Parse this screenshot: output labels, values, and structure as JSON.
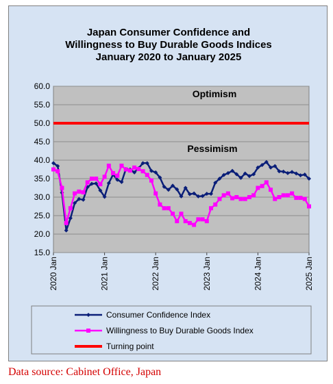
{
  "chart_data": {
    "type": "line",
    "title_lines": [
      "Japan Consumer Confidence and",
      "Willingness to Buy Durable Goods Indices",
      "January 2020 to January 2025"
    ],
    "ylim": [
      15,
      60
    ],
    "yticks": [
      "60.0",
      "55.0",
      "50.0",
      "45.0",
      "40.0",
      "35.0",
      "30.0",
      "25.0",
      "20.0",
      "15.0"
    ],
    "x_range": [
      "2020-01",
      "2025-01"
    ],
    "xticks": [
      "2020 Jan",
      "2021 Jan",
      "2022 Jan",
      "2023 Jan",
      "2024 Jan",
      "2025 Jan"
    ],
    "grid": true,
    "zone_labels": {
      "optimism": "Optimism",
      "pessimism": "Pessimism"
    },
    "legend_position": "bottom",
    "series": [
      {
        "name": "Consumer Confidence Index",
        "color": "#0a1e78",
        "marker": "diamond",
        "x": [
          "2020-01",
          "2020-02",
          "2020-03",
          "2020-04",
          "2020-05",
          "2020-06",
          "2020-07",
          "2020-08",
          "2020-09",
          "2020-10",
          "2020-11",
          "2020-12",
          "2021-01",
          "2021-02",
          "2021-03",
          "2021-04",
          "2021-05",
          "2021-06",
          "2021-07",
          "2021-08",
          "2021-09",
          "2021-10",
          "2021-11",
          "2021-12",
          "2022-01",
          "2022-02",
          "2022-03",
          "2022-04",
          "2022-05",
          "2022-06",
          "2022-07",
          "2022-08",
          "2022-09",
          "2022-10",
          "2022-11",
          "2022-12",
          "2023-01",
          "2023-02",
          "2023-03",
          "2023-04",
          "2023-05",
          "2023-06",
          "2023-07",
          "2023-08",
          "2023-09",
          "2023-10",
          "2023-11",
          "2023-12",
          "2024-01",
          "2024-02",
          "2024-03",
          "2024-04",
          "2024-05",
          "2024-06",
          "2024-07",
          "2024-08",
          "2024-09",
          "2024-10",
          "2024-11",
          "2024-12",
          "2025-01"
        ],
        "values": [
          39.2,
          38.4,
          31.2,
          21.0,
          24.3,
          28.4,
          29.5,
          29.3,
          32.7,
          33.6,
          33.7,
          31.8,
          30.1,
          33.8,
          36.1,
          34.7,
          34.1,
          37.6,
          37.5,
          36.7,
          37.8,
          39.2,
          39.2,
          37.1,
          36.7,
          35.3,
          32.8,
          32.0,
          33.1,
          32.1,
          30.2,
          32.5,
          30.8,
          31.0,
          30.2,
          30.3,
          30.9,
          30.9,
          33.9,
          35.0,
          36.0,
          36.5,
          37.1,
          36.2,
          35.2,
          36.4,
          35.7,
          36.2,
          38.0,
          38.7,
          39.5,
          38.0,
          38.4,
          37.0,
          36.9,
          36.5,
          36.8,
          36.4,
          35.9,
          36.1,
          35.0
        ]
      },
      {
        "name": "Willingness to Buy Durable Goods Index",
        "color": "#ff00ff",
        "marker": "square",
        "x": [
          "2020-01",
          "2020-02",
          "2020-03",
          "2020-04",
          "2020-05",
          "2020-06",
          "2020-07",
          "2020-08",
          "2020-09",
          "2020-10",
          "2020-11",
          "2020-12",
          "2021-01",
          "2021-02",
          "2021-03",
          "2021-04",
          "2021-05",
          "2021-06",
          "2021-07",
          "2021-08",
          "2021-09",
          "2021-10",
          "2021-11",
          "2021-12",
          "2022-01",
          "2022-02",
          "2022-03",
          "2022-04",
          "2022-05",
          "2022-06",
          "2022-07",
          "2022-08",
          "2022-09",
          "2022-10",
          "2022-11",
          "2022-12",
          "2023-01",
          "2023-02",
          "2023-03",
          "2023-04",
          "2023-05",
          "2023-06",
          "2023-07",
          "2023-08",
          "2023-09",
          "2023-10",
          "2023-11",
          "2023-12",
          "2024-01",
          "2024-02",
          "2024-03",
          "2024-04",
          "2024-05",
          "2024-06",
          "2024-07",
          "2024-08",
          "2024-09",
          "2024-10",
          "2024-11",
          "2024-12",
          "2025-01"
        ],
        "values": [
          37.5,
          37.0,
          32.5,
          23.0,
          27.0,
          31.0,
          31.5,
          31.3,
          34.0,
          35.0,
          35.0,
          33.5,
          35.5,
          38.5,
          36.5,
          35.8,
          38.5,
          37.5,
          37.2,
          38.0,
          37.6,
          37.0,
          36.0,
          34.5,
          31.0,
          28.0,
          27.0,
          27.0,
          25.5,
          23.5,
          25.5,
          23.5,
          23.0,
          22.5,
          24.0,
          24.0,
          23.5,
          27.0,
          28.0,
          29.5,
          30.5,
          31.0,
          29.7,
          30.0,
          29.5,
          29.5,
          30.0,
          30.5,
          32.5,
          33.0,
          34.0,
          32.0,
          29.5,
          30.0,
          30.5,
          30.5,
          31.0,
          29.8,
          29.8,
          29.5,
          27.5
        ]
      },
      {
        "name": "Turning point",
        "color": "#ff0000",
        "marker": "none",
        "x": [
          "2020-01",
          "2025-01"
        ],
        "values": [
          50,
          50
        ]
      }
    ]
  },
  "source": "Data source: Cabinet Office, Japan"
}
